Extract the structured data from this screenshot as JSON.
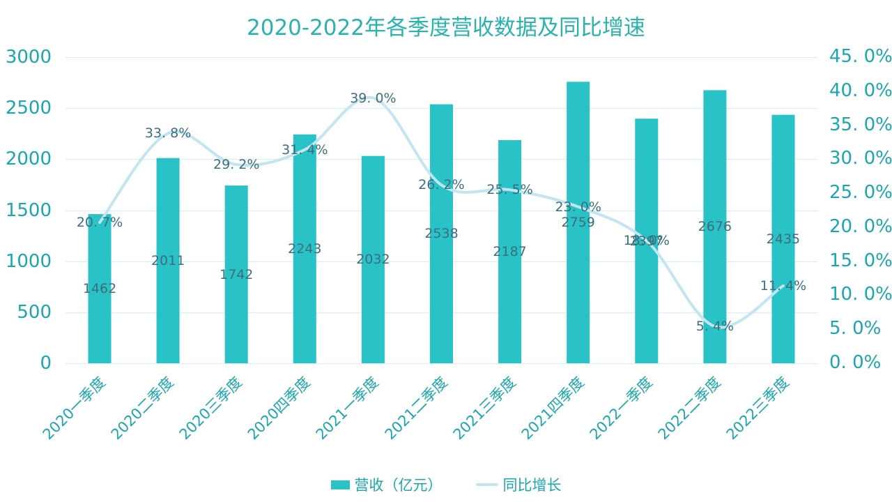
{
  "title": "2020-2022年各季度营收数据及同比增速",
  "legend": {
    "items": [
      {
        "label": "营收（亿元）",
        "marker": "bar-swatch"
      },
      {
        "label": "同比增长",
        "marker": "line-swatch"
      }
    ]
  },
  "chart_data": {
    "type": "bar",
    "combo": true,
    "title": "2020-2022年各季度营收数据及同比增速",
    "categories": [
      "2020一季度",
      "2020二季度",
      "2020三季度",
      "2020四季度",
      "2021一季度",
      "2021二季度",
      "2021三季度",
      "2021四季度",
      "2022一季度",
      "2022二季度",
      "2022三季度"
    ],
    "series": [
      {
        "name": "营收（亿元）",
        "type": "bar",
        "axis": "left",
        "values": [
          1462,
          2011,
          1742,
          2243,
          2032,
          2538,
          2187,
          2759,
          2397,
          2676,
          2435
        ],
        "labels": [
          "1462",
          "2011",
          "1742",
          "2243",
          "2032",
          "2538",
          "2187",
          "2759",
          "2397",
          "2676",
          "2435"
        ]
      },
      {
        "name": "同比增长",
        "type": "line",
        "axis": "right",
        "values": [
          20.7,
          33.8,
          29.2,
          31.4,
          39.0,
          26.2,
          25.5,
          23.0,
          18.0,
          5.4,
          11.4
        ],
        "labels": [
          "20. 7%",
          "33. 8%",
          "29. 2%",
          "31. 4%",
          "39. 0%",
          "26. 2%",
          "25. 5%",
          "23. 0%",
          "18. 0%",
          "5. 4%",
          "11. 4%"
        ]
      }
    ],
    "left_axis": {
      "min": 0,
      "max": 3000,
      "step": 500,
      "tick_labels": [
        "3000",
        "2500",
        "2000",
        "1500",
        "1000",
        "500",
        "0"
      ]
    },
    "right_axis": {
      "min": 0,
      "max": 45,
      "step": 5,
      "tick_labels": [
        "45. 0%",
        "40. 0%",
        "35. 0%",
        "30. 0%",
        "25. 0%",
        "20. 0%",
        "15. 0%",
        "10. 0%",
        "5. 0%",
        "0. 0%"
      ]
    },
    "grid": "horizontal",
    "legend_position": "bottom",
    "colors": {
      "bar": "#29C2C6",
      "line": "#C2E5F0",
      "grid": "#D9F0F3",
      "axis_text": "#1BA6AE",
      "title_text": "#2AB3AC",
      "data_label": "#3C6E7D"
    }
  }
}
